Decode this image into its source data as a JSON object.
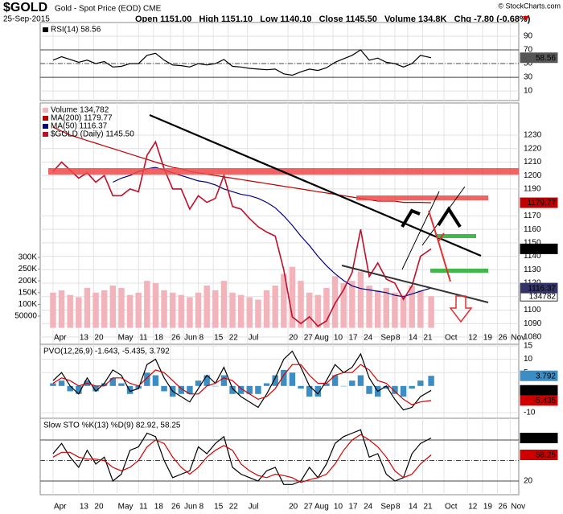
{
  "header": {
    "symbol": "$GOLD",
    "name": "Gold - Spot Price (EOD) CME",
    "date": "25-Sep-2015",
    "quote": "Open 1151.00   High 1151.10   Low 1140.10   Close 1145.50   Volume 134.8K   Chg -7.80 (-0.68%)",
    "credit": "© StockCharts.com"
  },
  "chart_data": {
    "type": "stock",
    "x": [
      "2015-04-01",
      "2015-04-05",
      "2015-04-09",
      "2015-04-13",
      "2015-04-17",
      "2015-04-21",
      "2015-04-25",
      "2015-04-29",
      "2015-05-03",
      "2015-05-07",
      "2015-05-11",
      "2015-05-15",
      "2015-05-19",
      "2015-05-23",
      "2015-05-27",
      "2015-05-31",
      "2015-06-04",
      "2015-06-08",
      "2015-06-12",
      "2015-06-16",
      "2015-06-20",
      "2015-06-24",
      "2015-06-28",
      "2015-07-02",
      "2015-07-06",
      "2015-07-10",
      "2015-07-14",
      "2015-07-18",
      "2015-07-22",
      "2015-07-26",
      "2015-07-30",
      "2015-08-03",
      "2015-08-07",
      "2015-08-11",
      "2015-08-15",
      "2015-08-19",
      "2015-08-23",
      "2015-08-27",
      "2015-08-31",
      "2015-09-04",
      "2015-09-08",
      "2015-09-12",
      "2015-09-16",
      "2015-09-20",
      "2015-09-25"
    ],
    "xlim": [
      "2015-03-26",
      "2015-11-05"
    ],
    "xticks": [
      {
        "value": "2015-04-01",
        "label": "Apr"
      },
      {
        "value": "2015-04-13",
        "label": "13"
      },
      {
        "value": "2015-04-20",
        "label": "20"
      },
      {
        "value": "2015-05-01",
        "label": "May"
      },
      {
        "value": "2015-05-11",
        "label": "11"
      },
      {
        "value": "2015-05-18",
        "label": "18"
      },
      {
        "value": "2015-05-26",
        "label": "26"
      },
      {
        "value": "2015-06-01",
        "label": "Jun"
      },
      {
        "value": "2015-06-08",
        "label": "8"
      },
      {
        "value": "2015-06-15",
        "label": "15"
      },
      {
        "value": "2015-06-22",
        "label": "22"
      },
      {
        "value": "2015-07-01",
        "label": "Jul"
      },
      {
        "value": "2015-07-20",
        "label": "20"
      },
      {
        "value": "2015-07-27",
        "label": "27"
      },
      {
        "value": "2015-08-01",
        "label": "Aug"
      },
      {
        "value": "2015-08-10",
        "label": "10"
      },
      {
        "value": "2015-08-17",
        "label": "17"
      },
      {
        "value": "2015-08-24",
        "label": "24"
      },
      {
        "value": "2015-09-01",
        "label": "Sep"
      },
      {
        "value": "2015-09-08",
        "label": "8"
      },
      {
        "value": "2015-09-14",
        "label": "14"
      },
      {
        "value": "2015-09-21",
        "label": "21"
      },
      {
        "value": "2015-10-01",
        "label": "Oct"
      },
      {
        "value": "2015-10-12",
        "label": "12"
      },
      {
        "value": "2015-10-19",
        "label": "19"
      },
      {
        "value": "2015-10-26",
        "label": "26"
      },
      {
        "value": "2015-11-01",
        "label": "Nov"
      }
    ],
    "panels": [
      {
        "type": "line",
        "ylim": [
          -4,
          110
        ],
        "yticks": [
          10,
          30,
          50,
          70,
          90
        ],
        "reference_lines": [
          70,
          50,
          30
        ],
        "series": [
          {
            "name": "RSI(14) 58.56",
            "color": "#000000",
            "label": "58.56",
            "label_color": "#555555",
            "values": [
              55,
              60,
              56,
              52,
              55,
              50,
              53,
              45,
              46,
              50,
              50,
              62,
              65,
              55,
              48,
              47,
              45,
              50,
              48,
              50,
              56,
              46,
              45,
              43,
              42,
              41,
              42,
              35,
              33,
              38,
              42,
              40,
              44,
              52,
              57,
              62,
              70,
              55,
              58,
              52,
              50,
              45,
              50,
              62,
              58.56
            ]
          }
        ]
      },
      {
        "type": "line",
        "ylim": [
          1074.6,
          1253.9
        ],
        "yticks": [
          1080,
          1090,
          1100,
          1110,
          1120,
          1130,
          1140,
          1150,
          1160,
          1170,
          1190,
          1200,
          1210,
          1220,
          1230
        ],
        "y2lim": [
          -69900,
          957500
        ],
        "y2ticks": [
          50000,
          {
            "value": 100000,
            "label": "100K"
          },
          {
            "value": 150000,
            "label": "150K"
          },
          {
            "value": 200000,
            "label": "200K"
          },
          {
            "value": 250000,
            "label": "250K"
          },
          {
            "value": 300000,
            "label": "300K"
          }
        ],
        "series": [
          {
            "name": "Volume 134,782",
            "type": "bar",
            "axis": "y2",
            "color": "#f2b3bb",
            "label": "134782",
            "label_color": "#ffffff",
            "values": [
              150000,
              160000,
              140000,
              130000,
              170000,
              150000,
              160000,
              180000,
              170000,
              140000,
              150000,
              200000,
              190000,
              160000,
              150000,
              140000,
              130000,
              150000,
              180000,
              160000,
              200000,
              150000,
              140000,
              130000,
              120000,
              160000,
              180000,
              230000,
              260000,
              200000,
              150000,
              140000,
              170000,
              220000,
              190000,
              200000,
              240000,
              180000,
              160000,
              170000,
              150000,
              140000,
              180000,
              160000,
              134782
            ]
          },
          {
            "name": "MA(200) 1179.77",
            "color": "#c00000",
            "label": "1179.77",
            "label_color": "#c00000",
            "values": [
              1236,
              1233,
              1230,
              1228,
              1226,
              1224,
              1222,
              1220,
              1218,
              1216,
              1214,
              1212,
              1210,
              1208,
              1206,
              1205,
              1203,
              1202,
              1201,
              1200,
              1199,
              1198,
              1197,
              1196,
              1195,
              1194,
              1193,
              1192,
              1191,
              1190,
              1189,
              1188,
              1187,
              1186,
              1185,
              1184,
              1183,
              1182,
              1181,
              1181,
              1181,
              1180,
              1180,
              1180,
              1179.77
            ]
          },
          {
            "name": "MA(50) 1116.37",
            "color": "#000080",
            "label": "1116.37",
            "label_color": "#333366",
            "values": [
              null,
              null,
              null,
              null,
              null,
              null,
              null,
              1195,
              1198,
              1200,
              1203,
              1205,
              1206,
              1204,
              1202,
              1200,
              1198,
              1196,
              1195,
              1193,
              1190,
              1188,
              1186,
              1185,
              1183,
              1180,
              1176,
              1170,
              1163,
              1155,
              1148,
              1140,
              1133,
              1127,
              1122,
              1118,
              1116,
              1115,
              1114,
              1113,
              1111,
              1110,
              1112,
              1114,
              1116.37
            ]
          },
          {
            "name": "$GOLD (Daily) 1145.50",
            "color": "#c0102a",
            "label": "1145.50",
            "label_color": "#000000",
            "values": [
              1203,
              1210,
              1204,
              1198,
              1202,
              1195,
              1200,
              1185,
              1185,
              1190,
              1188,
              1215,
              1225,
              1205,
              1190,
              1190,
              1175,
              1185,
              1180,
              1183,
              1200,
              1177,
              1175,
              1168,
              1162,
              1158,
              1155,
              1130,
              1095,
              1090,
              1095,
              1088,
              1092,
              1105,
              1115,
              1128,
              1160,
              1125,
              1135,
              1123,
              1120,
              1108,
              1118,
              1140,
              1145.5
            ]
          }
        ]
      },
      {
        "type": "line",
        "title": "PVO(12,26,9) -1.643, -5.435, 3.792",
        "ylim": [
          -12.1,
          15.6
        ],
        "yticks": [
          -10,
          5,
          10,
          15
        ],
        "series": [
          {
            "type": "bar",
            "color": "#3c8dc4",
            "label": "3.792",
            "label_color": "#3c8dc4",
            "values": [
              1,
              2,
              -2,
              -3,
              2,
              -2,
              1,
              3,
              1,
              -3,
              -1,
              5,
              4,
              -2,
              -4,
              -3,
              -3,
              2,
              4,
              0,
              4,
              -3,
              -3,
              -3,
              -3,
              1,
              4,
              6,
              5,
              -1,
              -4,
              -4,
              1,
              4,
              0,
              2,
              4,
              -3,
              -4,
              -1,
              -3,
              -4,
              -1,
              2,
              3.792
            ]
          },
          {
            "color": "#000000",
            "label": "-1.643",
            "label_color": "#000000",
            "values": [
              2,
              5,
              0,
              -3,
              3,
              -2,
              1,
              6,
              4,
              -2,
              -1,
              8,
              10,
              3,
              -2,
              -4,
              -6,
              -1,
              4,
              1,
              7,
              -1,
              -4,
              -6,
              -8,
              -3,
              3,
              10,
              13,
              7,
              0,
              -3,
              2,
              8,
              5,
              7,
              12,
              3,
              -2,
              0,
              -5,
              -9,
              -8,
              -4,
              -1.643
            ]
          },
          {
            "color": "#d00000",
            "label": "-5.435",
            "label_color": "#d00000",
            "values": [
              1,
              3,
              2,
              0,
              1,
              0,
              0,
              3,
              3,
              1,
              0,
              3,
              6,
              5,
              2,
              -1,
              -3,
              -3,
              0,
              1,
              3,
              2,
              -1,
              -3,
              -5,
              -4,
              -1,
              4,
              8,
              8,
              4,
              1,
              1,
              4,
              5,
              5,
              8,
              6,
              2,
              1,
              -2,
              -5,
              -7,
              -6,
              -5.435
            ]
          }
        ]
      },
      {
        "type": "line",
        "title": "Slow STO %K(13) %D(9) 82.92, 58.25",
        "ylim": [
          0,
          111.8
        ],
        "yticks": [
          20
        ],
        "reference_lines": [
          80,
          50,
          20
        ],
        "series": [
          {
            "color": "#000000",
            "label": "82.92",
            "label_color": "#000000",
            "values": [
              60,
              75,
              55,
              40,
              65,
              45,
              55,
              20,
              30,
              65,
              70,
              90,
              85,
              50,
              25,
              30,
              35,
              70,
              60,
              75,
              85,
              40,
              30,
              25,
              20,
              35,
              40,
              15,
              15,
              20,
              40,
              25,
              45,
              75,
              85,
              90,
              95,
              55,
              60,
              30,
              20,
              25,
              60,
              75,
              82.92
            ]
          },
          {
            "color": "#d00000",
            "label": "58.25",
            "label_color": "#d00000",
            "values": [
              55,
              62,
              62,
              55,
              52,
              52,
              50,
              40,
              35,
              40,
              50,
              70,
              80,
              75,
              55,
              40,
              30,
              40,
              55,
              65,
              72,
              65,
              45,
              35,
              28,
              25,
              30,
              28,
              25,
              18,
              22,
              25,
              30,
              45,
              65,
              80,
              88,
              80,
              70,
              55,
              35,
              25,
              30,
              45,
              58.25
            ]
          }
        ]
      }
    ]
  }
}
